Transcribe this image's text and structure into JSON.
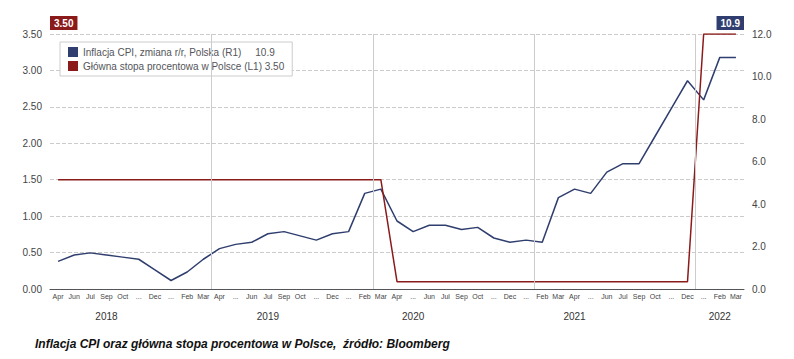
{
  "chart_data": {
    "type": "line",
    "title": "Inflacja CPI oraz główna stopa procentowa w Polsce,  źródło: Bloomberg",
    "categories": [
      "Apr",
      "Jun",
      "Jul",
      "Sep",
      "Oct",
      "...",
      "Dec",
      "...",
      "Feb",
      "Mar",
      "Apr",
      "...",
      "Jun",
      "Jul",
      "Sep",
      "Oct",
      "...",
      "Dec",
      "...",
      "Feb",
      "Mar",
      "Apr",
      "...",
      "Jun",
      "Jul",
      "Sep",
      "Oct",
      "...",
      "Dec",
      "...",
      "Feb",
      "Mar",
      "Apr",
      "...",
      "Jun",
      "Jul",
      "Sep",
      "Oct",
      "...",
      "Dec",
      "...",
      "Feb",
      "Mar"
    ],
    "series": [
      {
        "name": "Inflacja CPI, zmiana r/r, Polska (R1)     10.9",
        "color": "#2f3e6e",
        "axis": "y2",
        "values": [
          1.3,
          1.6,
          1.7,
          1.6,
          1.5,
          1.4,
          0.9,
          0.4,
          0.8,
          1.4,
          1.9,
          2.1,
          2.2,
          2.6,
          2.7,
          2.5,
          2.3,
          2.6,
          2.7,
          4.5,
          4.7,
          3.2,
          2.7,
          3.0,
          3.0,
          2.8,
          2.9,
          2.4,
          2.2,
          2.3,
          2.2,
          4.3,
          4.7,
          4.5,
          5.5,
          5.9,
          5.9,
          7.2,
          8.5,
          9.8,
          8.9,
          10.9,
          10.9
        ]
      },
      {
        "name": "Główna stopa procentowa w Polsce (L1) 3.50",
        "color": "#8b1a1a",
        "values": [
          1.5,
          1.5,
          1.5,
          1.5,
          1.5,
          1.5,
          1.5,
          1.5,
          1.5,
          1.5,
          1.5,
          1.5,
          1.5,
          1.5,
          1.5,
          1.5,
          1.5,
          1.5,
          1.5,
          1.5,
          1.5,
          0.1,
          0.1,
          0.1,
          0.1,
          0.1,
          0.1,
          0.1,
          0.1,
          0.1,
          0.1,
          0.1,
          0.1,
          0.1,
          0.1,
          0.1,
          0.1,
          0.1,
          0.1,
          0.1,
          3.5,
          3.5,
          3.5
        ]
      }
    ],
    "ylim": [
      0.0,
      3.5
    ],
    "yticks": [
      {
        "value": 0.0,
        "label": "0.00"
      },
      {
        "value": 0.5,
        "label": "0.50"
      },
      {
        "value": 1.0,
        "label": "1.00"
      },
      {
        "value": 1.5,
        "label": "1.50"
      },
      {
        "value": 2.0,
        "label": "2.00"
      },
      {
        "value": 2.5,
        "label": "2.50"
      },
      {
        "value": 3.0,
        "label": "3.00"
      },
      {
        "value": 3.5,
        "label": "3.50"
      }
    ],
    "y2lim": [
      0.0,
      12.0
    ],
    "y2ticks": [
      {
        "value": 0.0,
        "label": "0.0"
      },
      {
        "value": 2.0,
        "label": "2.0"
      },
      {
        "value": 4.0,
        "label": "4.0"
      },
      {
        "value": 6.0,
        "label": "6.0"
      },
      {
        "value": 8.0,
        "label": "8.0"
      },
      {
        "value": 10.0,
        "label": "10.0"
      },
      {
        "value": 12.0,
        "label": "12.0"
      }
    ],
    "grid": true,
    "legend": "upper left",
    "annotations": [
      {
        "text": "2018",
        "x": 3
      },
      {
        "text": "2019",
        "x": 13
      },
      {
        "text": "2020",
        "x": 22
      },
      {
        "text": "2021",
        "x": 32
      },
      {
        "text": "2022",
        "x": 41
      },
      {
        "text": "3.50",
        "axis": "y",
        "color": "#8b1a1a"
      },
      {
        "text": "10.9",
        "axis": "y2",
        "color": "#2f3e6e"
      }
    ],
    "year_separators": [
      9.5,
      19.5,
      29.5,
      39.5
    ]
  }
}
